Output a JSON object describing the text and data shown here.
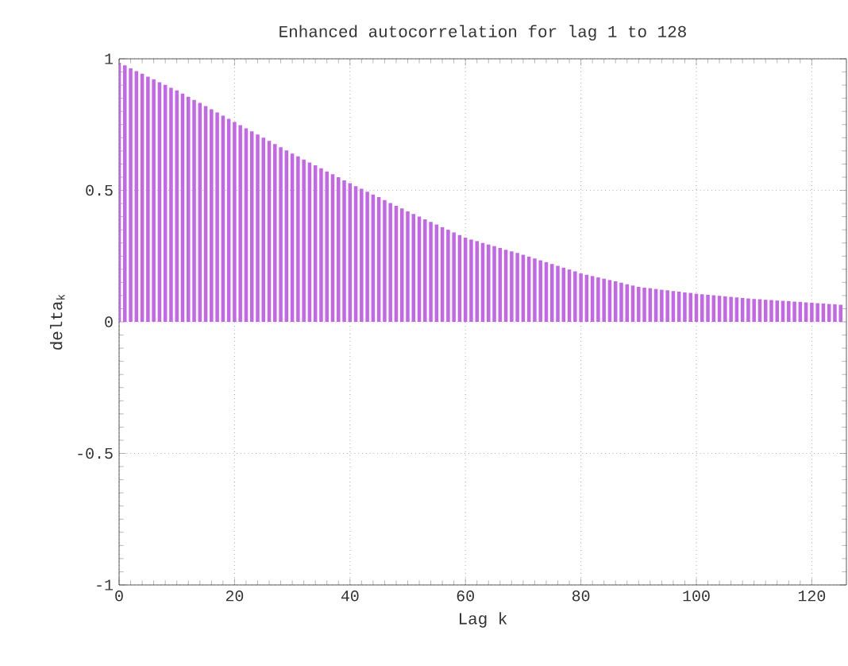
{
  "chart_data": {
    "type": "bar",
    "title": "Enhanced autocorrelation for lag 1 to 128",
    "xlabel": "Lag k",
    "ylabel": "delta$_{k}$",
    "x": [
      0,
      1,
      2,
      3,
      4,
      5,
      6,
      7,
      8,
      9,
      10,
      11,
      12,
      13,
      14,
      15,
      16,
      17,
      18,
      19,
      20,
      21,
      22,
      23,
      24,
      25,
      26,
      27,
      28,
      29,
      30,
      31,
      32,
      33,
      34,
      35,
      36,
      37,
      38,
      39,
      40,
      41,
      42,
      43,
      44,
      45,
      46,
      47,
      48,
      49,
      50,
      51,
      52,
      53,
      54,
      55,
      56,
      57,
      58,
      59,
      60,
      61,
      62,
      63,
      64,
      65,
      66,
      67,
      68,
      69,
      70,
      71,
      72,
      73,
      74,
      75,
      76,
      77,
      78,
      79,
      80,
      81,
      82,
      83,
      84,
      85,
      86,
      87,
      88,
      89,
      90,
      91,
      92,
      93,
      94,
      95,
      96,
      97,
      98,
      99,
      100,
      101,
      102,
      103,
      104,
      105,
      106,
      107,
      108,
      109,
      110,
      111,
      112,
      113,
      114,
      115,
      116,
      117,
      118,
      119,
      120,
      121,
      122,
      123,
      124,
      125
    ],
    "values": [
      0.985,
      0.975,
      0.964,
      0.953,
      0.943,
      0.932,
      0.922,
      0.911,
      0.901,
      0.89,
      0.88,
      0.868,
      0.856,
      0.844,
      0.832,
      0.82,
      0.808,
      0.796,
      0.784,
      0.772,
      0.76,
      0.748,
      0.736,
      0.724,
      0.712,
      0.7,
      0.688,
      0.676,
      0.664,
      0.652,
      0.64,
      0.629,
      0.617,
      0.606,
      0.595,
      0.584,
      0.572,
      0.561,
      0.55,
      0.538,
      0.527,
      0.516,
      0.506,
      0.495,
      0.484,
      0.474,
      0.463,
      0.452,
      0.441,
      0.431,
      0.42,
      0.41,
      0.4,
      0.39,
      0.38,
      0.37,
      0.36,
      0.35,
      0.34,
      0.33,
      0.32,
      0.313,
      0.307,
      0.3,
      0.294,
      0.288,
      0.281,
      0.274,
      0.268,
      0.262,
      0.255,
      0.248,
      0.241,
      0.234,
      0.227,
      0.22,
      0.213,
      0.206,
      0.199,
      0.192,
      0.184,
      0.179,
      0.174,
      0.169,
      0.164,
      0.159,
      0.154,
      0.149,
      0.143,
      0.138,
      0.133,
      0.13,
      0.128,
      0.125,
      0.122,
      0.12,
      0.117,
      0.115,
      0.112,
      0.11,
      0.107,
      0.105,
      0.103,
      0.101,
      0.099,
      0.097,
      0.095,
      0.093,
      0.091,
      0.089,
      0.087,
      0.086,
      0.084,
      0.083,
      0.081,
      0.08,
      0.079,
      0.077,
      0.076,
      0.074,
      0.073,
      0.071,
      0.07,
      0.068,
      0.067,
      0.065
    ],
    "color": "#c466e8",
    "xlim": [
      0,
      126
    ],
    "ylim": [
      -1,
      1
    ],
    "xticks": [
      0,
      20,
      40,
      60,
      80,
      100,
      120
    ],
    "yticks": [
      -1,
      -0.5,
      0,
      0.5,
      1
    ],
    "grid": true
  }
}
